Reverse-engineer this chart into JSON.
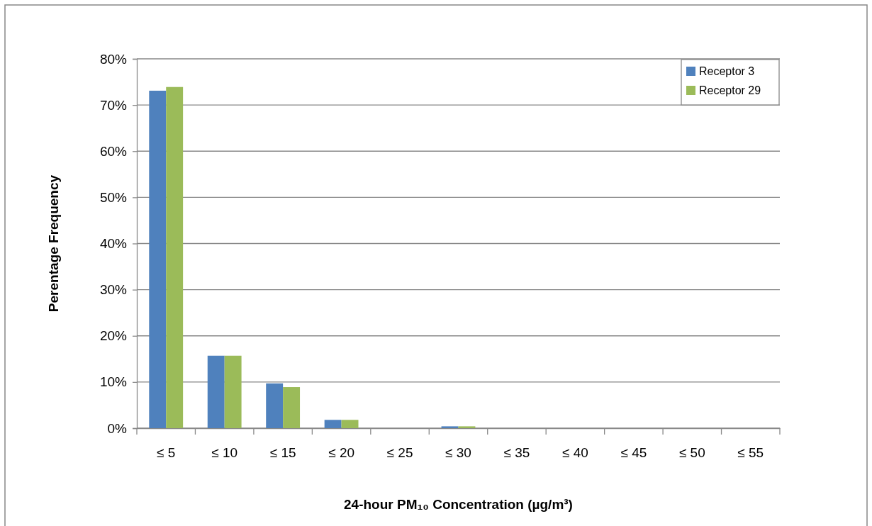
{
  "chart_data": {
    "type": "bar",
    "xlabel": "24-hour PM₁₀ Concentration (µg/m³)",
    "ylabel": "Perentage Frequency",
    "categories": [
      "≤ 5",
      "≤ 10",
      "≤ 15",
      "≤ 20",
      "≤ 25",
      "≤ 30",
      "≤ 35",
      "≤ 40",
      "≤ 45",
      "≤ 50",
      "≤ 55"
    ],
    "series": [
      {
        "name": "Receptor 3",
        "color": "#4f81bd",
        "values": [
          73.1,
          15.7,
          9.7,
          1.8,
          0,
          0.4,
          0,
          0,
          0,
          0,
          0
        ]
      },
      {
        "name": "Receptor 29",
        "color": "#9bbb59",
        "values": [
          73.9,
          15.7,
          8.9,
          1.8,
          0,
          0.4,
          0,
          0,
          0,
          0,
          0
        ]
      }
    ],
    "ylim": [
      0,
      80
    ],
    "yticks": [
      {
        "value": 0,
        "label": "0%"
      },
      {
        "value": 10,
        "label": "10%"
      },
      {
        "value": 20,
        "label": "20%"
      },
      {
        "value": 30,
        "label": "30%"
      },
      {
        "value": 40,
        "label": "40%"
      },
      {
        "value": 50,
        "label": "50%"
      },
      {
        "value": 60,
        "label": "60%"
      },
      {
        "value": 70,
        "label": "70%"
      },
      {
        "value": 80,
        "label": "80%"
      }
    ],
    "grid": "y",
    "legend": "top right"
  }
}
